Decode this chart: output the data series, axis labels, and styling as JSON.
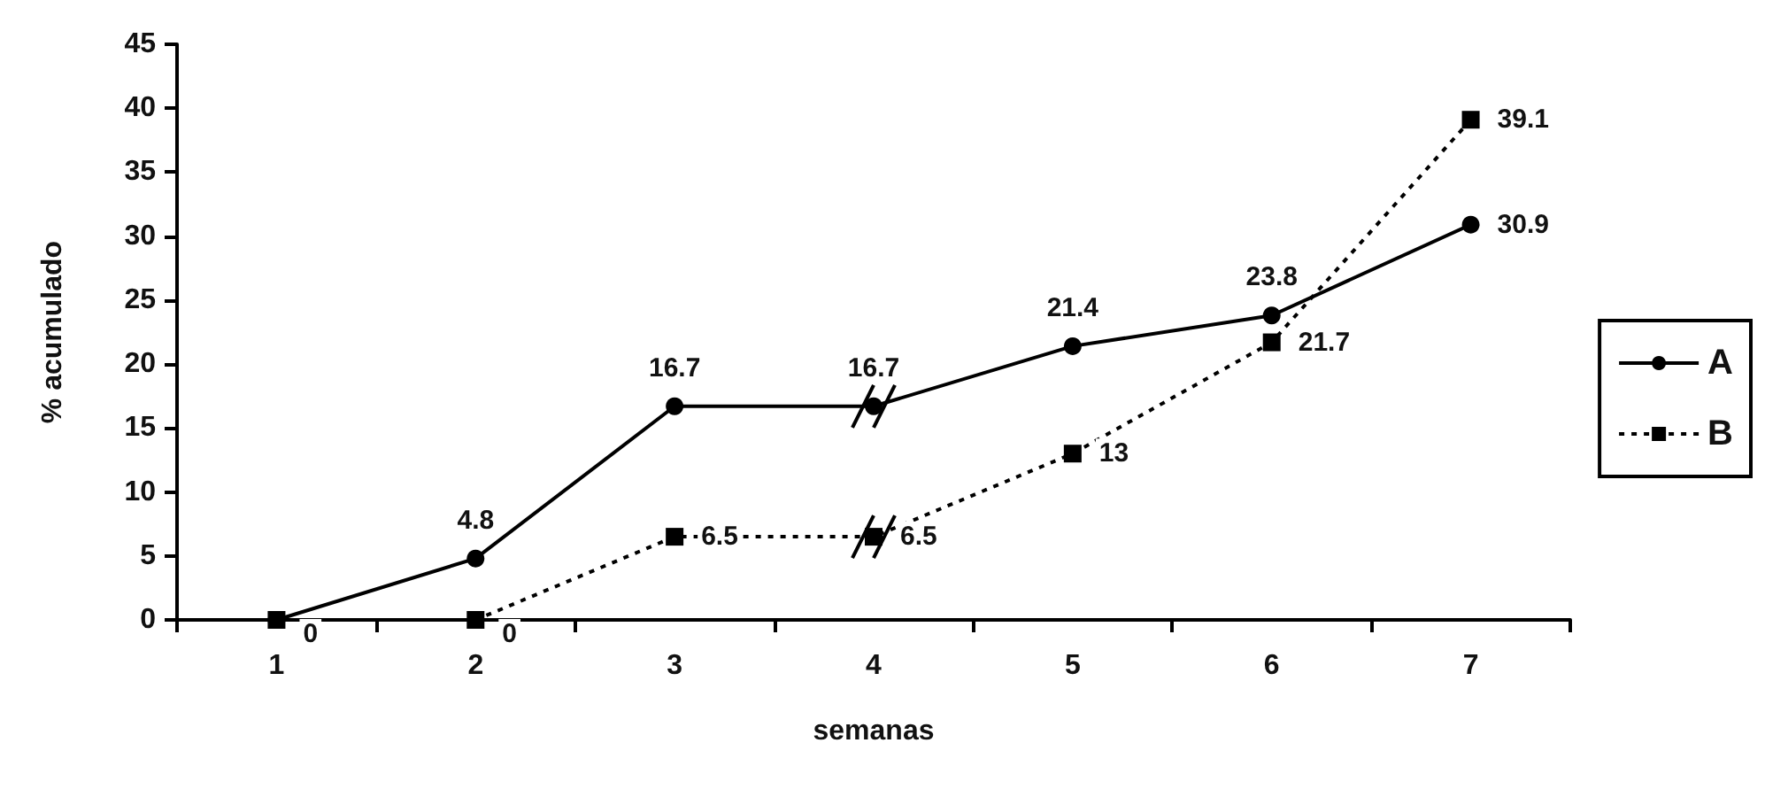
{
  "chart_data": {
    "type": "line",
    "xlabel": "semanas",
    "ylabel": "% acumulado",
    "categories": [
      "1",
      "2",
      "3",
      "4",
      "5",
      "6",
      "7"
    ],
    "series": [
      {
        "name": "A",
        "color": "#000000",
        "marker": "circle",
        "line_style": "solid",
        "values": [
          0,
          4.8,
          16.7,
          16.7,
          21.4,
          23.8,
          30.9
        ],
        "value_labels": [
          null,
          "4.8",
          "16.7",
          "16.7",
          "21.4",
          "23.8",
          "30.9"
        ]
      },
      {
        "name": "B",
        "color": "#000000",
        "marker": "square",
        "line_style": "dotted",
        "values": [
          0,
          0,
          6.5,
          6.5,
          13,
          21.7,
          39.1
        ],
        "value_labels": [
          "0",
          "0",
          "6.5",
          "6.5",
          "13",
          "21.7",
          "39.1"
        ]
      }
    ],
    "ylim": [
      0,
      45
    ],
    "yticks": [
      0,
      5,
      10,
      15,
      20,
      25,
      30,
      35,
      40,
      45
    ],
    "grid": false,
    "legend": "right"
  }
}
